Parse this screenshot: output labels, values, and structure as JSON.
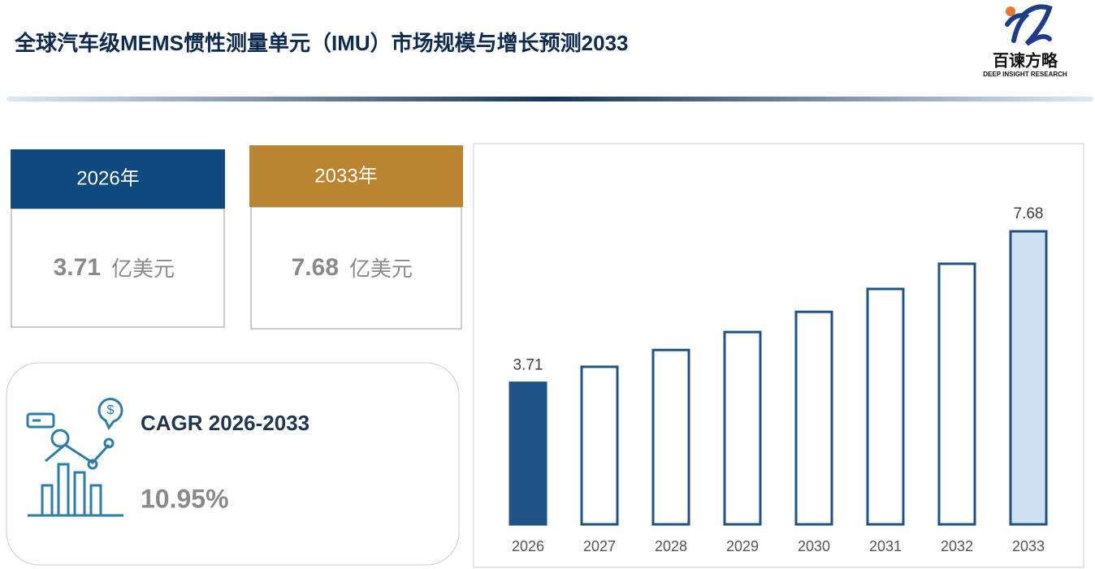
{
  "header": {
    "title": "全球汽车级MEMS惯性测量单元（IMU）市场规模与增长预测2033",
    "logo": {
      "name": "百谏方略",
      "tagline": "DEEP INSIGHT RESEARCH"
    }
  },
  "cards": [
    {
      "label": "2026年",
      "value": 3.71,
      "unit": "亿美元"
    },
    {
      "label": "2033年",
      "value": 7.68,
      "unit": "亿美元"
    }
  ],
  "cagr": {
    "label": "CAGR 2026-2033",
    "value": "10.95%"
  },
  "chart_data": {
    "type": "bar",
    "categories": [
      "2026",
      "2027",
      "2028",
      "2029",
      "2030",
      "2031",
      "2032",
      "2033"
    ],
    "values": [
      3.71,
      4.13,
      4.57,
      5.04,
      5.57,
      6.17,
      6.83,
      7.68
    ],
    "value_labels": [
      "3.71",
      null,
      null,
      null,
      null,
      null,
      null,
      "7.68"
    ],
    "fill_colors": [
      "#1f5286",
      "#ffffff",
      "#ffffff",
      "#ffffff",
      "#ffffff",
      "#ffffff",
      "#ffffff",
      "#cfe0f2"
    ],
    "color": "#1f5286"
  }
}
